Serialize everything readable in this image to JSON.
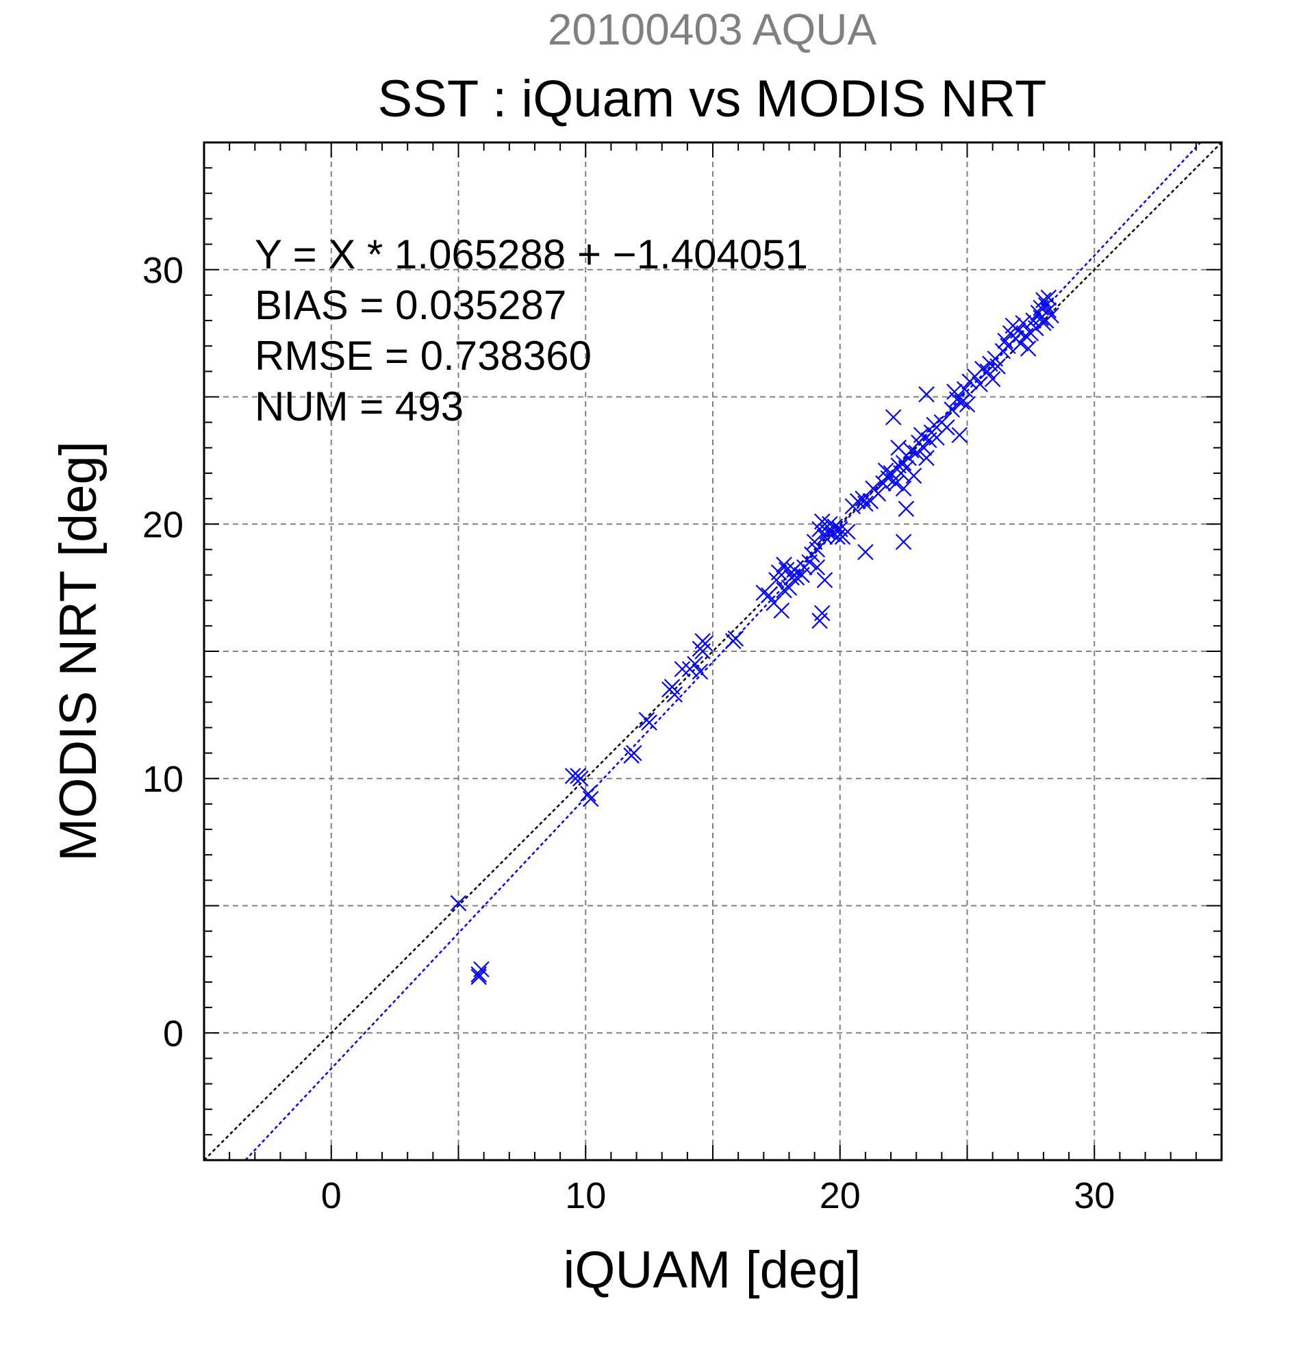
{
  "chart_data": {
    "type": "scatter",
    "title": "20100403 AQUA",
    "subtitle": "SST : iQuam vs MODIS NRT",
    "xlabel": "iQUAM [deg]",
    "ylabel": "MODIS NRT [deg]",
    "xlim": [
      -5,
      35
    ],
    "ylim": [
      -5,
      35
    ],
    "x_ticks": [
      0,
      10,
      20,
      30
    ],
    "y_ticks": [
      0,
      10,
      20,
      30
    ],
    "grid": true,
    "annotations": [
      "Y = X * 1.065288 + −1.404051",
      "BIAS = 0.035287",
      "RMSE = 0.738360",
      "NUM = 493"
    ],
    "colors": {
      "points": "#0000ff",
      "fit_line": "#0000ff",
      "identity_line": "#000000",
      "grid": "#808080",
      "title": "#808080"
    },
    "lines": [
      {
        "kind": "identity",
        "slope": 1.0,
        "intercept": 0.0,
        "style": "dotted",
        "color": "#000000"
      },
      {
        "kind": "fit",
        "slope": 1.065288,
        "intercept": -1.404051,
        "style": "dotted",
        "color": "#0000ff"
      }
    ],
    "series": [
      {
        "marker": "x",
        "color": "#0000ff",
        "points": [
          [
            5.0,
            5.1
          ],
          [
            5.8,
            2.3
          ],
          [
            5.9,
            2.5
          ],
          [
            5.8,
            2.2
          ],
          [
            9.5,
            10.1
          ],
          [
            9.8,
            10.0
          ],
          [
            9.7,
            10.1
          ],
          [
            10.1,
            9.4
          ],
          [
            10.2,
            9.2
          ],
          [
            11.8,
            10.9
          ],
          [
            11.9,
            11.0
          ],
          [
            12.4,
            12.3
          ],
          [
            12.5,
            12.2
          ],
          [
            13.3,
            13.5
          ],
          [
            13.4,
            13.6
          ],
          [
            13.5,
            13.3
          ],
          [
            13.8,
            14.3
          ],
          [
            14.1,
            14.3
          ],
          [
            14.3,
            14.5
          ],
          [
            14.5,
            14.2
          ],
          [
            14.6,
            15.0
          ],
          [
            14.6,
            15.4
          ],
          [
            14.7,
            15.3
          ],
          [
            14.5,
            15.1
          ],
          [
            15.8,
            15.4
          ],
          [
            15.9,
            15.5
          ],
          [
            17.0,
            17.3
          ],
          [
            17.2,
            17.2
          ],
          [
            17.4,
            16.9
          ],
          [
            17.5,
            17.8
          ],
          [
            17.6,
            18.1
          ],
          [
            17.7,
            16.6
          ],
          [
            17.8,
            17.4
          ],
          [
            17.9,
            18.2
          ],
          [
            18.0,
            17.5
          ],
          [
            18.1,
            17.9
          ],
          [
            17.8,
            18.4
          ],
          [
            18.2,
            18.2
          ],
          [
            18.3,
            17.9
          ],
          [
            18.5,
            18.0
          ],
          [
            18.6,
            18.3
          ],
          [
            18.8,
            18.5
          ],
          [
            18.9,
            18.8
          ],
          [
            19.0,
            19.3
          ],
          [
            19.1,
            19.0
          ],
          [
            19.2,
            19.8
          ],
          [
            19.3,
            20.1
          ],
          [
            19.4,
            19.5
          ],
          [
            19.5,
            19.7
          ],
          [
            19.6,
            20.0
          ],
          [
            19.7,
            19.6
          ],
          [
            19.8,
            19.9
          ],
          [
            19.9,
            19.5
          ],
          [
            20.0,
            19.8
          ],
          [
            20.1,
            19.5
          ],
          [
            20.3,
            19.7
          ],
          [
            19.2,
            16.2
          ],
          [
            19.3,
            16.5
          ],
          [
            19.4,
            17.8
          ],
          [
            19.1,
            18.3
          ],
          [
            20.5,
            20.7
          ],
          [
            20.7,
            20.9
          ],
          [
            20.9,
            21.0
          ],
          [
            21.0,
            20.8
          ],
          [
            21.2,
            20.9
          ],
          [
            21.0,
            18.9
          ],
          [
            21.3,
            21.4
          ],
          [
            21.5,
            21.2
          ],
          [
            21.7,
            21.6
          ],
          [
            21.8,
            22.1
          ],
          [
            21.9,
            21.8
          ],
          [
            22.0,
            22.0
          ],
          [
            22.1,
            21.7
          ],
          [
            22.2,
            21.6
          ],
          [
            22.3,
            22.3
          ],
          [
            22.4,
            22.0
          ],
          [
            22.5,
            22.4
          ],
          [
            22.6,
            22.2
          ],
          [
            22.7,
            22.6
          ],
          [
            22.8,
            22.9
          ],
          [
            22.1,
            24.2
          ],
          [
            22.3,
            23.0
          ],
          [
            22.5,
            21.4
          ],
          [
            22.6,
            20.6
          ],
          [
            22.5,
            19.3
          ],
          [
            22.9,
            21.9
          ],
          [
            23.0,
            22.8
          ],
          [
            23.1,
            23.2
          ],
          [
            23.2,
            23.5
          ],
          [
            23.3,
            23.0
          ],
          [
            23.4,
            22.6
          ],
          [
            23.5,
            23.3
          ],
          [
            23.6,
            23.6
          ],
          [
            23.7,
            23.9
          ],
          [
            23.8,
            23.4
          ],
          [
            23.4,
            25.1
          ],
          [
            24.0,
            24.0
          ],
          [
            24.2,
            23.8
          ],
          [
            24.4,
            24.5
          ],
          [
            24.5,
            25.2
          ],
          [
            24.6,
            24.9
          ],
          [
            24.7,
            23.5
          ],
          [
            24.8,
            24.8
          ],
          [
            24.9,
            25.3
          ],
          [
            25.0,
            24.7
          ],
          [
            25.1,
            25.6
          ],
          [
            25.3,
            25.8
          ],
          [
            25.5,
            25.5
          ],
          [
            25.6,
            26.1
          ],
          [
            25.8,
            26.0
          ],
          [
            25.9,
            26.3
          ],
          [
            26.0,
            25.7
          ],
          [
            26.1,
            26.5
          ],
          [
            26.2,
            26.2
          ],
          [
            26.4,
            26.8
          ],
          [
            26.5,
            27.2
          ],
          [
            26.6,
            27.0
          ],
          [
            26.7,
            27.5
          ],
          [
            26.8,
            27.8
          ],
          [
            26.9,
            27.3
          ],
          [
            27.0,
            27.6
          ],
          [
            27.1,
            27.1
          ],
          [
            27.2,
            27.9
          ],
          [
            27.3,
            27.4
          ],
          [
            27.4,
            26.9
          ],
          [
            27.5,
            27.5
          ],
          [
            27.6,
            28.0
          ],
          [
            27.7,
            27.7
          ],
          [
            27.8,
            28.3
          ],
          [
            27.9,
            28.5
          ],
          [
            28.0,
            28.8
          ],
          [
            28.1,
            28.6
          ],
          [
            28.2,
            28.9
          ],
          [
            28.3,
            28.2
          ],
          [
            28.1,
            28.0
          ],
          [
            27.9,
            28.1
          ],
          [
            28.2,
            28.4
          ],
          [
            28.0,
            27.9
          ]
        ]
      }
    ]
  }
}
